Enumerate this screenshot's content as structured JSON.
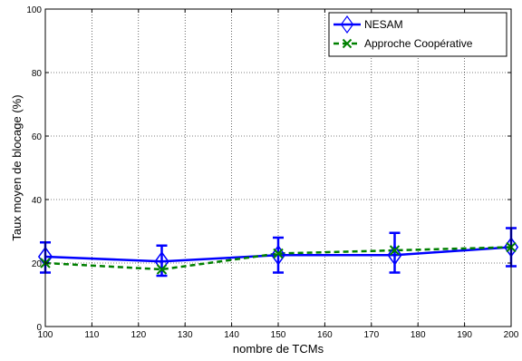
{
  "chart_data": {
    "type": "line",
    "title": "",
    "xlabel": "nombre de TCMs",
    "ylabel": "Taux moyen de blocage (%)",
    "xlim": [
      100,
      200
    ],
    "ylim": [
      0,
      100
    ],
    "x_ticks": [
      "100",
      "110",
      "120",
      "130",
      "140",
      "150",
      "160",
      "170",
      "180",
      "190",
      "200"
    ],
    "y_ticks": [
      "0",
      "20",
      "40",
      "60",
      "80",
      "100"
    ],
    "grid": true,
    "legend_position": "top-right",
    "series": [
      {
        "name": "NESAM",
        "color": "#0000ff",
        "line_style": "solid",
        "marker": "diamond",
        "x": [
          100,
          125,
          150,
          175,
          200
        ],
        "y": [
          22,
          20.5,
          22.5,
          22.5,
          25
        ],
        "err_low": [
          17,
          16,
          17,
          17,
          19
        ],
        "err_high": [
          26.5,
          25.5,
          28,
          29.5,
          31
        ]
      },
      {
        "name": "Approche Coopérative",
        "color": "#008000",
        "line_style": "dashed",
        "marker": "x",
        "x": [
          100,
          125,
          150,
          175,
          200
        ],
        "y": [
          20,
          18,
          23,
          24,
          25
        ]
      }
    ]
  }
}
